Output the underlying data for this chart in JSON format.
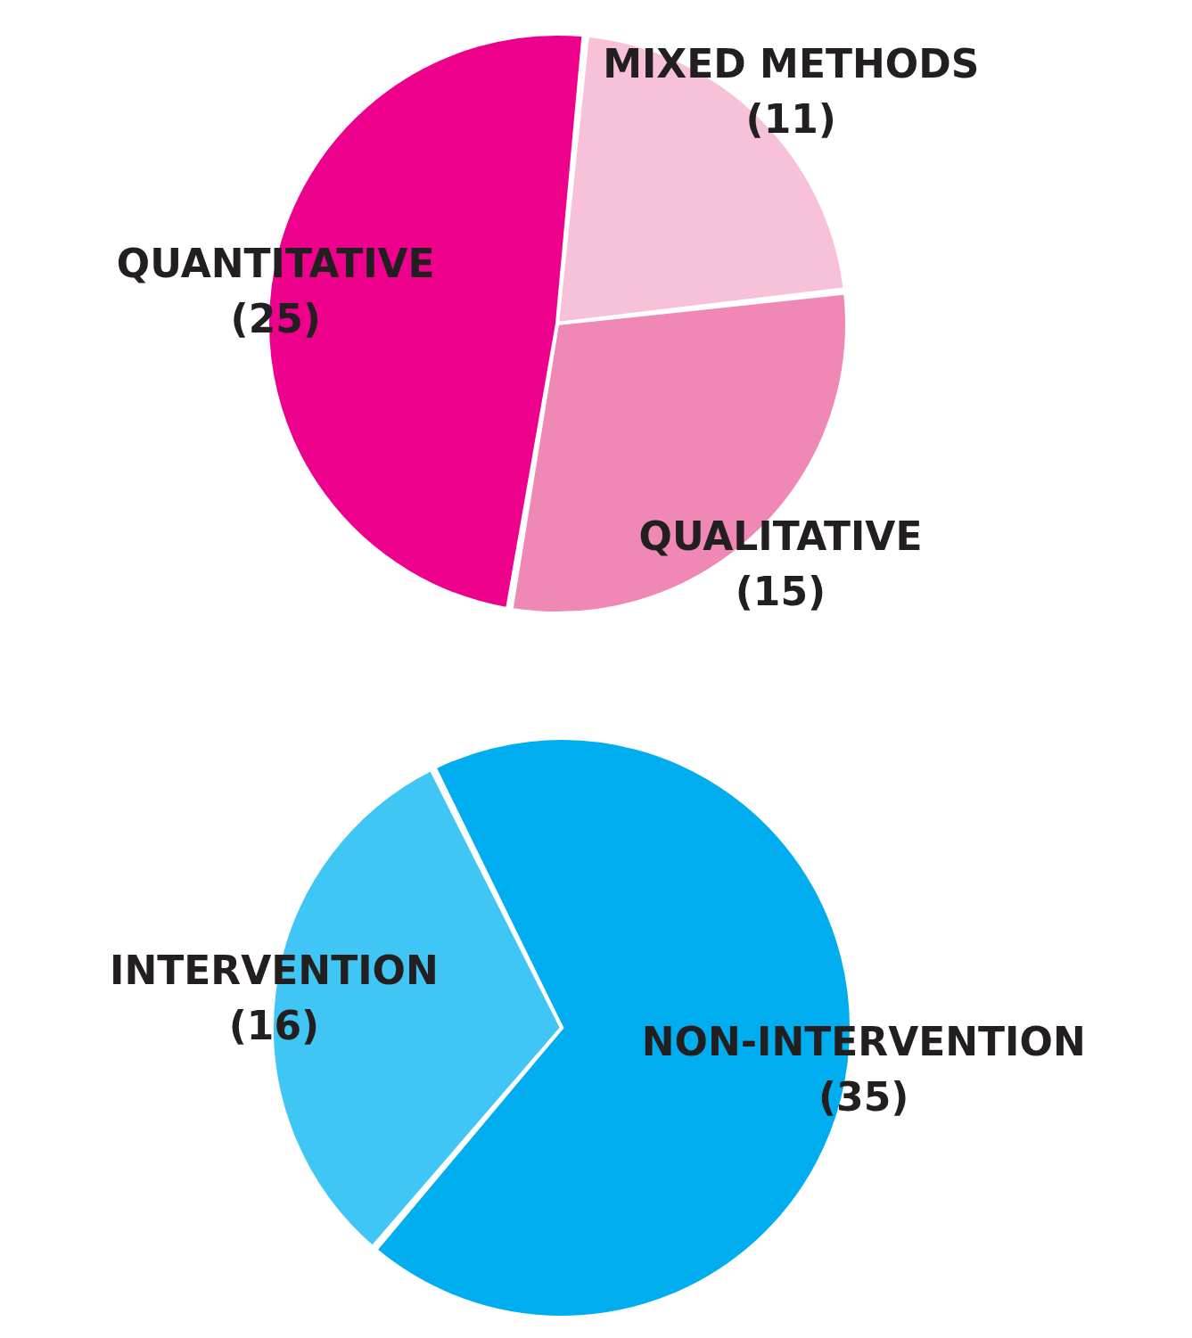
{
  "chart_data": [
    {
      "type": "pie",
      "categories": [
        "MIXED METHODS",
        "QUALITATIVE",
        "QUANTITATIVE"
      ],
      "values": [
        11,
        15,
        25
      ],
      "value_labels": [
        "(11)",
        "(15)",
        "(25)"
      ],
      "colors": [
        "#f7c1d9",
        "#f088b6",
        "#ec008c"
      ]
    },
    {
      "type": "pie",
      "categories": [
        "NON-INTERVENTION",
        "INTERVENTION"
      ],
      "values": [
        35,
        16
      ],
      "value_labels": [
        "(35)",
        "(16)"
      ],
      "colors": [
        "#00aeef",
        "#40c6f4"
      ]
    }
  ]
}
